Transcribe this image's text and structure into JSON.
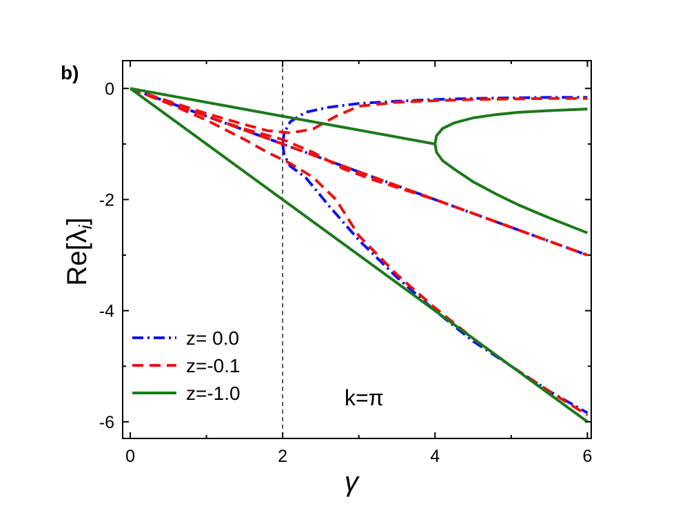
{
  "chart_data": {
    "type": "line",
    "panel_label": "b)",
    "xlabel": "γ",
    "ylabel": "Re[λ",
    "ylabel_sub": "i",
    "ylabel_close": "]",
    "annotation": "k=π",
    "xlim": [
      -0.1,
      6.05
    ],
    "ylim": [
      -6.3,
      0.5
    ],
    "x_ticks": [
      0,
      2,
      4,
      6
    ],
    "y_ticks": [
      0,
      -2,
      -4,
      -6
    ],
    "x_tick_labels": [
      "0",
      "2",
      "4",
      "6"
    ],
    "y_tick_labels": [
      "0",
      "-2",
      "-4",
      "-6"
    ],
    "reference_line_x": 2,
    "legend_position": "bottom-left",
    "series": [
      {
        "name": "z= 0.0",
        "color": "#1010ee",
        "dash": "dashdot",
        "branches": [
          {
            "x": [
              0,
              0.5,
              1,
              1.5,
              2,
              3,
              4,
              5,
              6
            ],
            "y": [
              0,
              -0.25,
              -0.5,
              -0.75,
              -1.0,
              -1.5,
              -2.0,
              -2.5,
              -3.0
            ]
          },
          {
            "x": [
              0,
              0.5,
              1,
              1.5,
              1.9,
              2.0
            ],
            "y": [
              0,
              -0.25,
              -0.5,
              -0.75,
              -0.95,
              -1.0
            ]
          },
          {
            "x": [
              2.0,
              2.02,
              2.1,
              2.3,
              2.6,
              3.0,
              3.5,
              4.0,
              4.5,
              5.0,
              5.5,
              6.0
            ],
            "y": [
              -1.0,
              -0.8,
              -0.6,
              -0.43,
              -0.34,
              -0.27,
              -0.23,
              -0.2,
              -0.18,
              -0.17,
              -0.16,
              -0.16
            ]
          },
          {
            "x": [
              2.0,
              2.02,
              2.1,
              2.3,
              2.6,
              3.0,
              3.5,
              4.0,
              4.5,
              5.0,
              5.5,
              6.0
            ],
            "y": [
              -1.0,
              -1.2,
              -1.4,
              -1.6,
              -2.1,
              -2.73,
              -3.4,
              -4.0,
              -4.55,
              -5.0,
              -5.45,
              -5.84
            ]
          }
        ]
      },
      {
        "name": "z=-0.1",
        "color": "#ee1010",
        "dash": "dashed",
        "branches": [
          {
            "x": [
              0,
              0.5,
              1,
              1.5,
              2,
              3,
              4,
              5,
              6
            ],
            "y": [
              0,
              -0.25,
              -0.5,
              -0.75,
              -1.0,
              -1.5,
              -2.0,
              -2.5,
              -3.0
            ]
          },
          {
            "x": [
              0,
              0.5,
              1,
              1.5,
              1.8,
              2.1,
              2.4,
              2.7,
              3.0,
              3.5,
              4.0,
              4.5,
              5.0,
              5.5,
              6.0
            ],
            "y": [
              0,
              -0.23,
              -0.45,
              -0.65,
              -0.76,
              -0.8,
              -0.73,
              -0.5,
              -0.32,
              -0.25,
              -0.22,
              -0.2,
              -0.19,
              -0.18,
              -0.18
            ]
          },
          {
            "x": [
              0,
              0.5,
              1,
              1.5,
              1.8,
              2.1,
              2.4,
              2.7,
              3.0,
              3.5,
              4.0,
              4.5,
              5.0,
              5.5,
              6.0
            ],
            "y": [
              0,
              -0.27,
              -0.57,
              -0.92,
              -1.15,
              -1.35,
              -1.6,
              -2.0,
              -2.65,
              -3.35,
              -3.95,
              -4.5,
              -5.0,
              -5.45,
              -5.88
            ]
          },
          {
            "x": [
              0,
              0.5,
              1,
              1.5,
              2,
              2.4,
              2.8,
              3.2,
              4.0,
              5.0,
              6.0
            ],
            "y": [
              0,
              -0.25,
              -0.5,
              -0.73,
              -0.92,
              -1.15,
              -1.45,
              -1.65,
              -2.0,
              -2.5,
              -3.0
            ]
          }
        ]
      },
      {
        "name": "z=-1.0",
        "color": "#1a7a1a",
        "dash": "solid",
        "branches": [
          {
            "x": [
              0,
              1,
              2,
              3,
              4
            ],
            "y": [
              0,
              -0.25,
              -0.5,
              -0.75,
              -1.0
            ]
          },
          {
            "x": [
              4.0,
              4.02,
              4.1,
              4.25,
              4.5,
              4.8,
              5.1,
              5.5,
              6.0
            ],
            "y": [
              -1.0,
              -0.85,
              -0.72,
              -0.62,
              -0.53,
              -0.47,
              -0.43,
              -0.4,
              -0.37
            ]
          },
          {
            "x": [
              4.0,
              4.02,
              4.1,
              4.25,
              4.5,
              4.8,
              5.1,
              5.5,
              6.0
            ],
            "y": [
              -1.0,
              -1.15,
              -1.3,
              -1.45,
              -1.68,
              -1.9,
              -2.1,
              -2.33,
              -2.6
            ]
          },
          {
            "x": [
              0,
              2,
              4,
              6
            ],
            "y": [
              0,
              -2.0,
              -4.0,
              -6.0
            ]
          }
        ]
      }
    ]
  }
}
